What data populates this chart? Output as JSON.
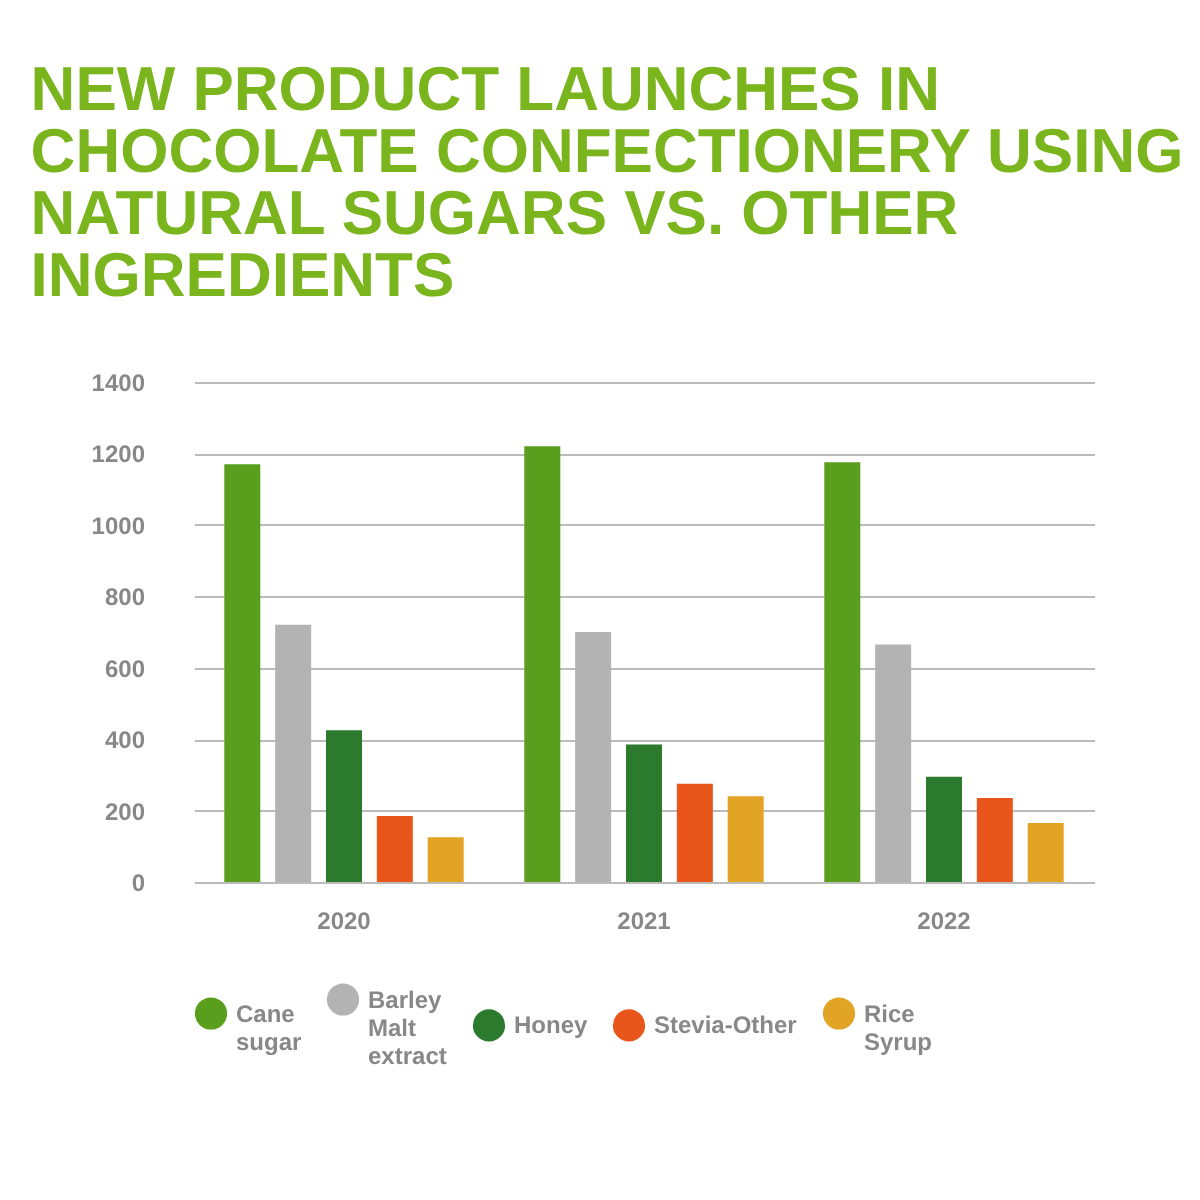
{
  "chart_data": {
    "type": "bar",
    "title": "NEW PRODUCT LAUNCHES IN CHOCOLATE CONFECTIONERY USING NATURAL SUGARS VS. OTHER INGREDIENTS",
    "categories": [
      "2020",
      "2021",
      "2022"
    ],
    "series": [
      {
        "name": "Cane sugar",
        "color": "#5a9e1e",
        "values": [
          1170,
          1220,
          1175
        ]
      },
      {
        "name": "Barley Malt extract",
        "color": "#b3b3b3",
        "values": [
          720,
          700,
          665
        ]
      },
      {
        "name": "Honey",
        "color": "#2b7a2e",
        "values": [
          425,
          385,
          295
        ]
      },
      {
        "name": "Stevia-Other",
        "color": "#e8561c",
        "values": [
          185,
          275,
          235
        ]
      },
      {
        "name": "Rice Syrup",
        "color": "#e2a424",
        "values": [
          125,
          240,
          165
        ]
      }
    ],
    "ylim": [
      0,
      1400
    ],
    "yticks": [
      0,
      200,
      400,
      600,
      800,
      1000,
      1200,
      1400
    ],
    "grid": "y",
    "legend": "bottom"
  }
}
